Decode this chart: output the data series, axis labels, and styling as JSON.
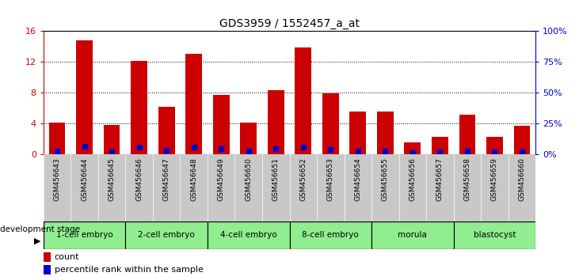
{
  "title": "GDS3959 / 1552457_a_at",
  "samples": [
    "GSM456643",
    "GSM456644",
    "GSM456645",
    "GSM456646",
    "GSM456647",
    "GSM456648",
    "GSM456649",
    "GSM456650",
    "GSM456651",
    "GSM456652",
    "GSM456653",
    "GSM456654",
    "GSM456655",
    "GSM456656",
    "GSM456657",
    "GSM456658",
    "GSM456659",
    "GSM456660"
  ],
  "counts": [
    4.1,
    14.8,
    3.8,
    12.1,
    6.1,
    13.0,
    7.7,
    4.1,
    8.3,
    13.8,
    7.9,
    5.5,
    5.5,
    1.5,
    2.2,
    5.1,
    2.2,
    3.7
  ],
  "percentile_ranks": [
    2.5,
    6.4,
    2.0,
    5.6,
    2.9,
    5.4,
    4.0,
    2.4,
    4.1,
    5.8,
    3.5,
    2.4,
    2.2,
    0.8,
    2.0,
    2.1,
    1.5,
    1.5
  ],
  "stages_order": [
    "1-cell embryo",
    "2-cell embryo",
    "4-cell embryo",
    "8-cell embryo",
    "morula",
    "blastocyst"
  ],
  "stages": {
    "1-cell embryo": [
      0,
      1,
      2
    ],
    "2-cell embryo": [
      3,
      4,
      5
    ],
    "4-cell embryo": [
      6,
      7,
      8
    ],
    "8-cell embryo": [
      9,
      10,
      11
    ],
    "morula": [
      12,
      13,
      14
    ],
    "blastocyst": [
      15,
      16,
      17
    ]
  },
  "stage_bg_color": "#90ee90",
  "sample_label_bg": "#c8c8c8",
  "bar_color": "#cc0000",
  "dot_color": "#0000cc",
  "left_ylim": [
    0,
    16
  ],
  "right_ylim": [
    0,
    100
  ],
  "left_yticks": [
    0,
    4,
    8,
    12,
    16
  ],
  "right_yticks": [
    0,
    25,
    50,
    75,
    100
  ],
  "left_yticklabels": [
    "0",
    "4",
    "8",
    "12",
    "16"
  ],
  "right_yticklabels": [
    "0%",
    "25%",
    "50%",
    "75%",
    "100%"
  ],
  "bar_width": 0.6,
  "dot_size": 18
}
